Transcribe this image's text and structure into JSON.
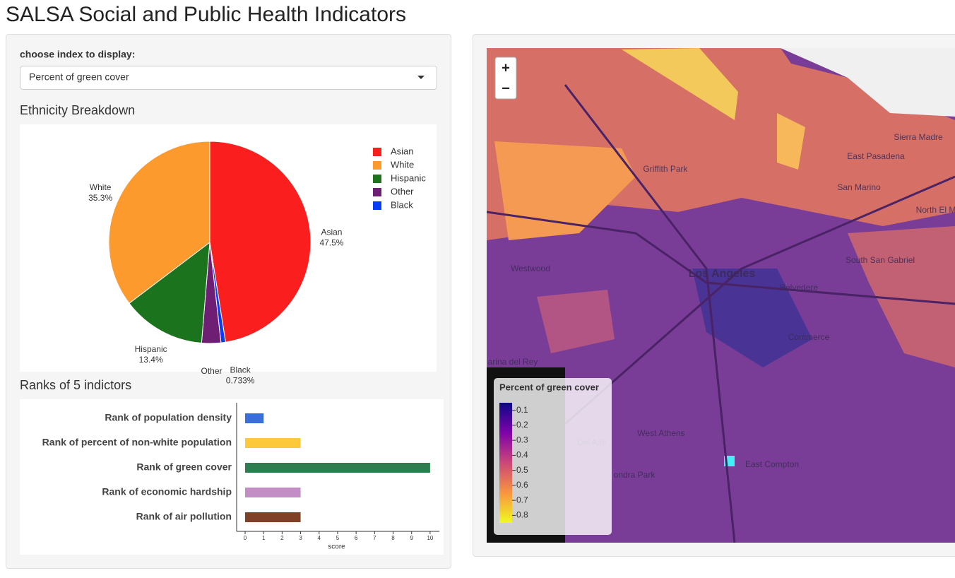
{
  "header": {
    "title": "SALSA Social and Public Health Indicators"
  },
  "sidebar": {
    "select_label": "choose index to display:",
    "select_value": "Percent of green cover"
  },
  "pie": {
    "type": "pie",
    "title": "Ethnicity Breakdown",
    "categories": [
      "Asian",
      "White",
      "Hispanic",
      "Other",
      "Black"
    ],
    "values": [
      47.5,
      35.3,
      13.4,
      3.07,
      0.733
    ],
    "value_labels": [
      "47.5%",
      "35.3%",
      "13.4%",
      null,
      "0.733%"
    ],
    "colors": [
      "#fb1e1e",
      "#fc9a2e",
      "#1c731e",
      "#6e1f74",
      "#0b3cf5"
    ]
  },
  "bars": {
    "type": "bar",
    "title": "Ranks of 5 indictors",
    "categories": [
      "Rank of population density",
      "Rank of percent of non-white population",
      "Rank of green cover",
      "Rank of economic hardship",
      "Rank of air pollution"
    ],
    "values": [
      1,
      3,
      10,
      3,
      3
    ],
    "colors": [
      "#3a6fdb",
      "#fbc93a",
      "#2e7d50",
      "#c38dc5",
      "#7f4227"
    ],
    "xlim": [
      0,
      10.5
    ],
    "xticks": [
      0,
      1,
      2,
      3,
      4,
      5,
      6,
      7,
      8,
      9,
      10
    ],
    "xlabel": "score"
  },
  "map": {
    "zoom_in": "+",
    "zoom_out": "−",
    "legend_title": "Percent of green cover",
    "legend_lim": [
      0.05,
      0.85
    ],
    "legend_ticks": [
      0.1,
      0.2,
      0.3,
      0.4,
      0.5,
      0.6,
      0.7,
      0.8
    ],
    "places": [
      "Sierra Madre",
      "East Pasadena",
      "Griffith Park",
      "San Marino",
      "North El M",
      "Westwood",
      "Los Angeles",
      "South San Gabriel",
      "Belvedere",
      "Commerce",
      "arina del Rey",
      "West Athens",
      "Del Aire",
      "East Compton",
      "ondra Park"
    ]
  }
}
